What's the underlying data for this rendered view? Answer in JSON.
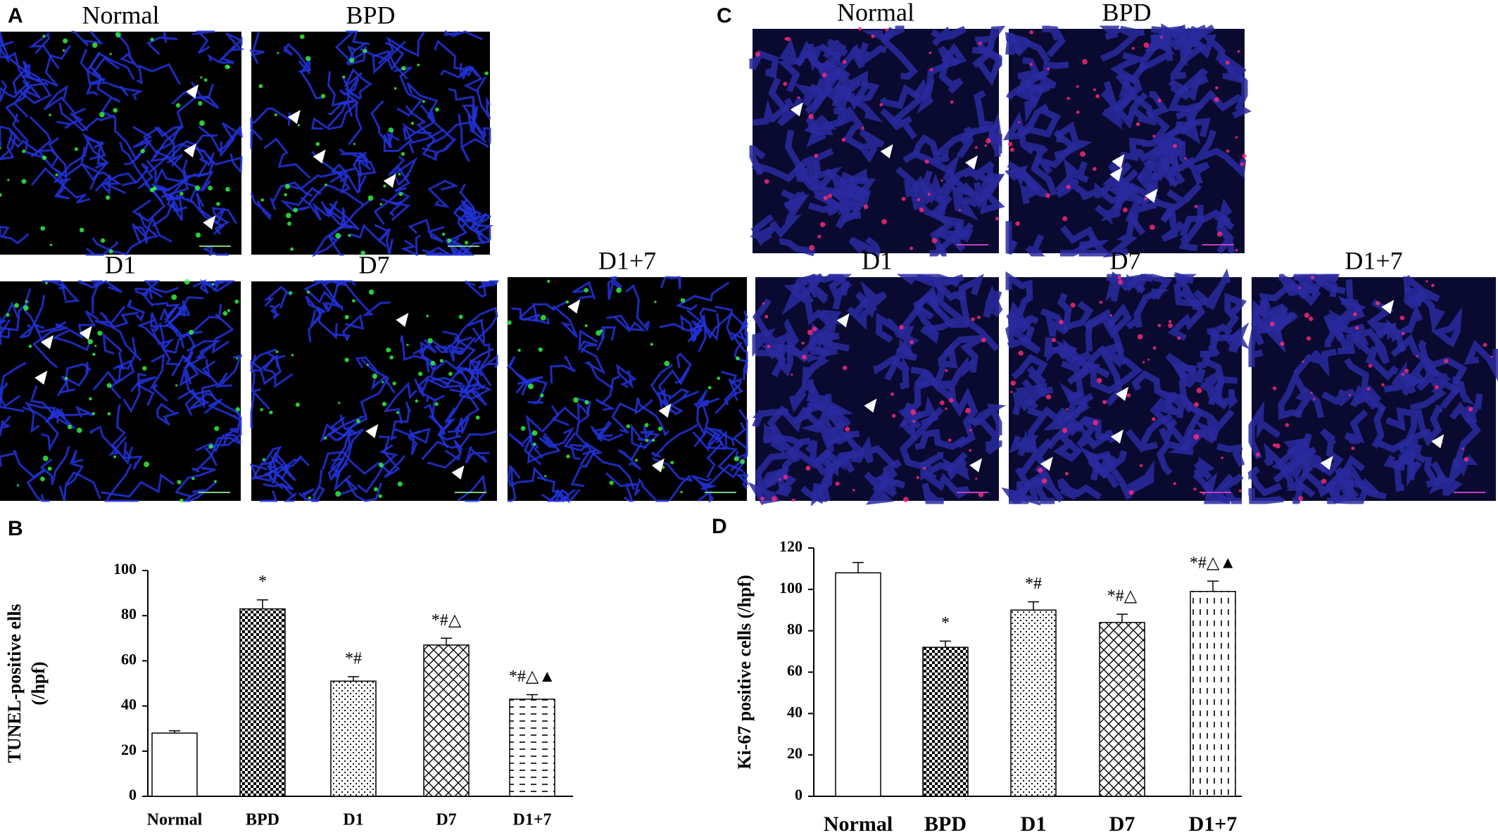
{
  "panels": [
    {
      "label": "A",
      "images": [
        "Normal",
        "BPD",
        "D1",
        "D7",
        "D1+7"
      ]
    },
    {
      "label": "C",
      "images": [
        "Normal",
        "BPD",
        "D1",
        "D7",
        "D1+7"
      ]
    }
  ],
  "chart_data": [
    {
      "type": "bar",
      "label": "B",
      "ylabel": [
        "TUNEL-positive ells",
        "(/hpf)"
      ],
      "categories": [
        "Normal",
        "BPD",
        "D1",
        "D7",
        "D1+7"
      ],
      "values": [
        28,
        83,
        51,
        67,
        43
      ],
      "errors": [
        1,
        4,
        2,
        3,
        2
      ],
      "annotations": [
        null,
        "*",
        "*#",
        "*#△",
        "*#△▲"
      ],
      "patterns": [
        "none",
        "checker",
        "dots",
        "hatch",
        "hdash"
      ],
      "ylim": [
        0,
        100
      ],
      "yticks": [
        0,
        20,
        40,
        60,
        80,
        100
      ]
    },
    {
      "type": "bar",
      "label": "D",
      "ylabel": [
        "Ki-67 positive cells (/hpf)"
      ],
      "categories": [
        "Normal",
        "BPD",
        "D1",
        "D7",
        "D1+7"
      ],
      "values": [
        108,
        72,
        90,
        84,
        99
      ],
      "errors": [
        5,
        3,
        4,
        4,
        5
      ],
      "annotations": [
        null,
        "*",
        "*#",
        "*#△",
        "*#△▲"
      ],
      "patterns": [
        "none",
        "checker",
        "dots",
        "hatch",
        "vdash"
      ],
      "ylim": [
        0,
        120
      ],
      "yticks": [
        0,
        20,
        40,
        60,
        80,
        100,
        120
      ]
    }
  ]
}
